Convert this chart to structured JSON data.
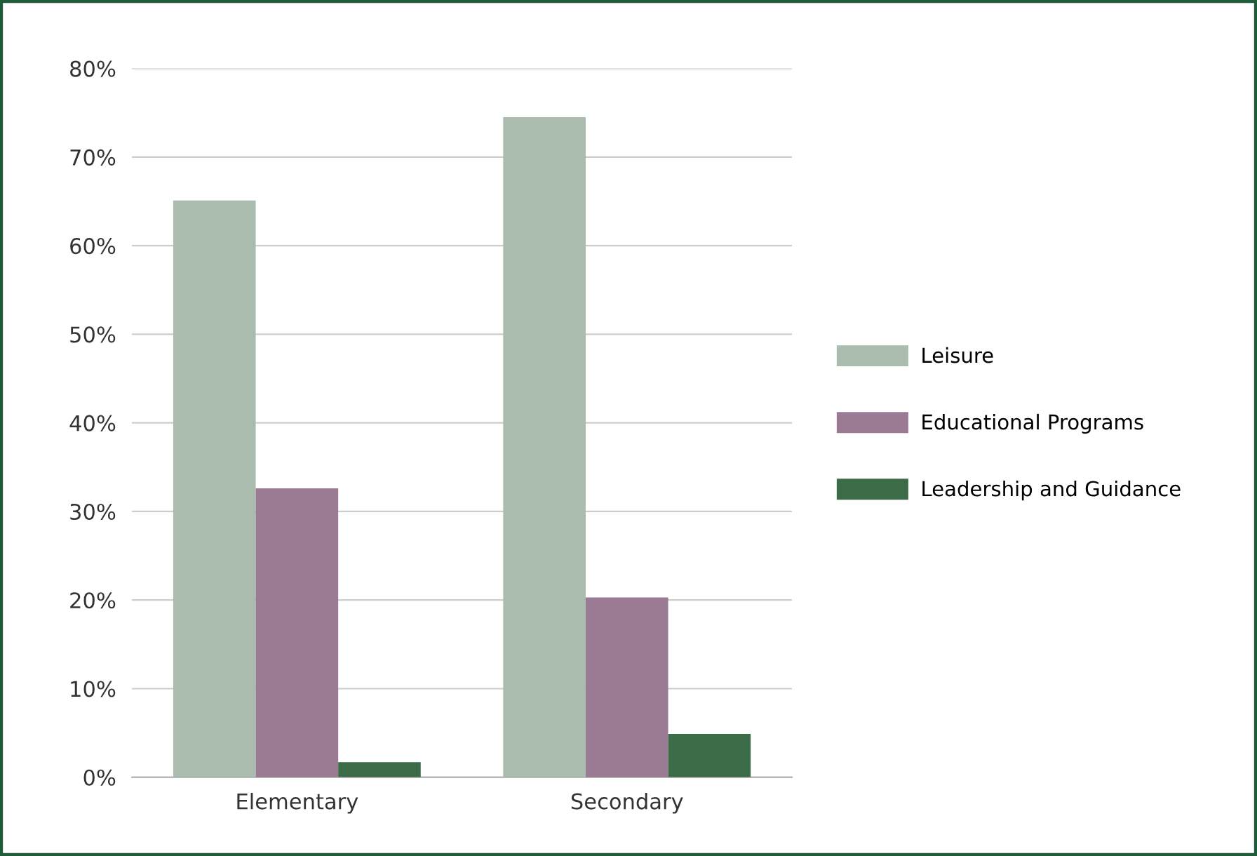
{
  "chart_data": {
    "type": "bar",
    "categories": [
      "Elementary",
      "Secondary"
    ],
    "series": [
      {
        "name": "Leisure",
        "color": "#a9bcad",
        "values": [
          65.1,
          74.5
        ]
      },
      {
        "name": "Educational Programs",
        "color": "#9b7b93",
        "values": [
          32.6,
          20.3
        ]
      },
      {
        "name": "Leadership and Guidance",
        "color": "#3c6b48",
        "values": [
          1.7,
          4.9
        ]
      }
    ],
    "ylim": [
      0,
      80
    ],
    "yticks": [
      {
        "value": 0,
        "label": "0%"
      },
      {
        "value": 10,
        "label": "10%"
      },
      {
        "value": 20,
        "label": "20%"
      },
      {
        "value": 30,
        "label": "30%"
      },
      {
        "value": 40,
        "label": "40%"
      },
      {
        "value": 50,
        "label": "50%"
      },
      {
        "value": 60,
        "label": "60%"
      },
      {
        "value": 70,
        "label": "70%"
      },
      {
        "value": 80,
        "label": "80%"
      }
    ],
    "grid": "y",
    "legend": "right"
  }
}
